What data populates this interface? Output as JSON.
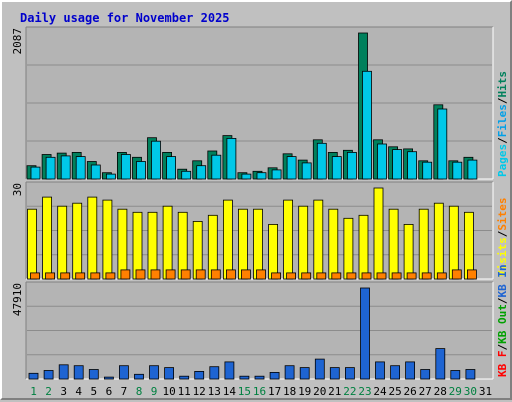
{
  "chart_data": {
    "type": "bar",
    "title": "Daily usage for November 2025",
    "days": [
      "1",
      "2",
      "3",
      "4",
      "5",
      "6",
      "7",
      "8",
      "9",
      "10",
      "11",
      "12",
      "13",
      "14",
      "15",
      "16",
      "17",
      "18",
      "19",
      "20",
      "21",
      "22",
      "23",
      "24",
      "25",
      "26",
      "27",
      "28",
      "29",
      "30",
      "31"
    ],
    "weekend_days": [
      "1",
      "2",
      "8",
      "9",
      "15",
      "16",
      "22",
      "23",
      "29",
      "30"
    ],
    "colors": {
      "background": "#c0c0c0",
      "plot_background": "#b4b4b4",
      "title": "#0000cc",
      "weekday_tick": "#000000",
      "weekend_tick": "#008040",
      "hits": "#00805c",
      "files": "#00c8e8",
      "sites": "#ffff00",
      "visits": "#ff8000",
      "kbin": "#1e64d2",
      "kbout": "#00a000",
      "kbf": "#ff0000"
    },
    "panels": [
      {
        "name": "hits-files-pages",
        "ymax_label": "2087",
        "ymax": 2087,
        "legend": [
          {
            "label": "Pages",
            "color": "#00c8e8"
          },
          {
            "label": "/",
            "color": "#000000"
          },
          {
            "label": "Files",
            "color": "#00a0e8"
          },
          {
            "label": "/",
            "color": "#000000"
          },
          {
            "label": "Hits",
            "color": "#00805c"
          }
        ],
        "series": [
          {
            "name": "Hits",
            "color": "#00805c",
            "values": [
              190,
              350,
              370,
              380,
              250,
              90,
              380,
              310,
              590,
              380,
              140,
              260,
              400,
              620,
              90,
              110,
              160,
              360,
              270,
              560,
              380,
              410,
              2087,
              560,
              460,
              430,
              260,
              1060,
              260,
              310,
              null
            ]
          },
          {
            "name": "Files",
            "color": "#00c8e8",
            "values": [
              170,
              310,
              330,
              320,
              200,
              70,
              350,
              250,
              540,
              320,
              110,
              190,
              340,
              580,
              70,
              90,
              130,
              320,
              230,
              510,
              320,
              380,
              1540,
              500,
              420,
              390,
              240,
              1000,
              240,
              270,
              null
            ]
          }
        ]
      },
      {
        "name": "visits-sites",
        "ymax_label": "30",
        "ymax": 30,
        "legend": [
          {
            "label": "Visits",
            "color": "#ffff00"
          },
          {
            "label": "/",
            "color": "#000000"
          },
          {
            "label": "Sites",
            "color": "#ff8000"
          }
        ],
        "series": [
          {
            "name": "Visits",
            "color": "#ffff00",
            "values": [
              23,
              27,
              24,
              25,
              27,
              26,
              23,
              22,
              22,
              24,
              22,
              19,
              21,
              26,
              23,
              23,
              18,
              26,
              24,
              26,
              23,
              20,
              21,
              30,
              23,
              18,
              23,
              25,
              24,
              22,
              null
            ]
          },
          {
            "name": "Sites",
            "color": "#ff8000",
            "values": [
              2,
              2,
              2,
              2,
              2,
              2,
              3,
              3,
              3,
              3,
              3,
              3,
              3,
              3,
              3,
              3,
              2,
              2,
              2,
              2,
              2,
              2,
              2,
              2,
              2,
              2,
              2,
              2,
              3,
              3,
              null
            ]
          }
        ]
      },
      {
        "name": "kbin-kbout-kbf",
        "ymax_label": "47910",
        "ymax": 47910,
        "legend": [
          {
            "label": "KB F",
            "color": "#ff0000"
          },
          {
            "label": "/",
            "color": "#000000"
          },
          {
            "label": "KB Out",
            "color": "#00a000"
          },
          {
            "label": "/",
            "color": "#000000"
          },
          {
            "label": "KB In",
            "color": "#1e64d2"
          }
        ],
        "series": [
          {
            "name": "KB In",
            "color": "#1e64d2",
            "values": [
              3000,
              4500,
              7500,
              7000,
              5000,
              1000,
              7000,
              2500,
              7000,
              6000,
              1500,
              4000,
              6500,
              9000,
              1500,
              1500,
              3500,
              7000,
              6000,
              10500,
              6000,
              6000,
              47910,
              9000,
              7000,
              9000,
              5000,
              16000,
              4500,
              5000,
              null
            ]
          }
        ]
      }
    ]
  }
}
